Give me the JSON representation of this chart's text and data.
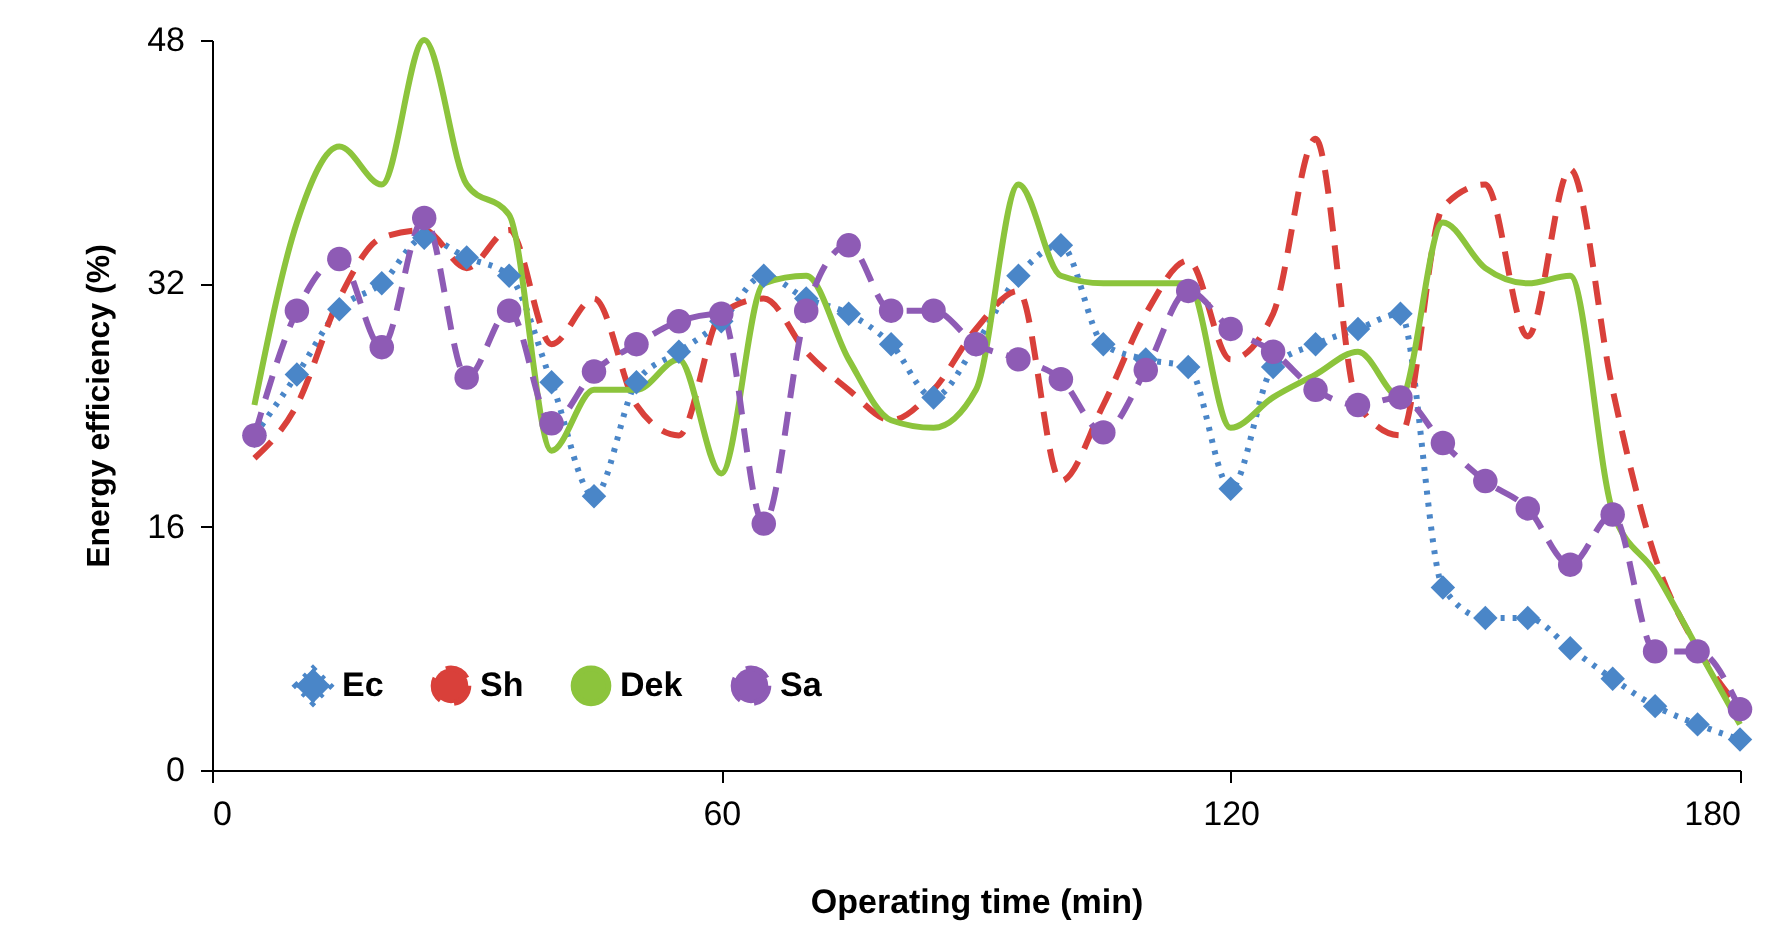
{
  "chart_data": {
    "type": "line",
    "xlabel": "Operating time (min)",
    "ylabel": "Energy efficiency (%)",
    "x": [
      5,
      10,
      15,
      20,
      25,
      30,
      35,
      40,
      45,
      50,
      55,
      60,
      65,
      70,
      75,
      80,
      85,
      90,
      95,
      100,
      105,
      110,
      115,
      120,
      125,
      130,
      135,
      140,
      145,
      150,
      155,
      160,
      165,
      170,
      175,
      180
    ],
    "series": [
      {
        "name": "Ec",
        "color": "#4a86c8",
        "marker": "diamond",
        "line_style": "dotted",
        "values": [
          22,
          26,
          30.3,
          32,
          35,
          33.7,
          32.5,
          25.5,
          18,
          25.5,
          27.5,
          29.5,
          32.5,
          31,
          30,
          28,
          24.5,
          28,
          32.5,
          34.5,
          28,
          27,
          26.5,
          18.5,
          26.5,
          28,
          29,
          30,
          12,
          10,
          10,
          8,
          6,
          4.2,
          3,
          2
        ]
      },
      {
        "name": "Sh",
        "color": "#d9403a",
        "marker": "none",
        "line_style": "dashed",
        "values": [
          20.5,
          24,
          31,
          35,
          35.5,
          33,
          35.5,
          28,
          31,
          24,
          22,
          30,
          31,
          27.5,
          25,
          23,
          25,
          29,
          31.5,
          19,
          24,
          30,
          33.5,
          27,
          30,
          41.5,
          24,
          22,
          37,
          38.5,
          28.5,
          39.5,
          25,
          14,
          8,
          4
        ]
      },
      {
        "name": "Dek",
        "color": "#8cc43c",
        "marker": "none",
        "line_style": "solid",
        "values": [
          24,
          36,
          41,
          38.5,
          48,
          38.5,
          36.5,
          21,
          25,
          25,
          27,
          19.5,
          32,
          32.5,
          27,
          23,
          22.5,
          25,
          38.5,
          32.5,
          32,
          32,
          32,
          22.5,
          24.5,
          26,
          27.5,
          24.5,
          36,
          33,
          32,
          32.5,
          17,
          13,
          8,
          3
        ]
      },
      {
        "name": "Sa",
        "color": "#8e5bb5",
        "marker": "circle",
        "line_style": "dashed",
        "values": [
          22,
          30.2,
          33.6,
          27.8,
          36.3,
          25.8,
          30.2,
          22.8,
          26.2,
          28,
          29.5,
          30,
          16.2,
          30.2,
          34.5,
          30.2,
          30.2,
          28,
          27,
          25.7,
          22.2,
          26.3,
          31.5,
          29,
          27.5,
          25,
          24,
          24.5,
          21.5,
          19,
          17.2,
          13.5,
          16.8,
          7.8,
          7.8,
          4
        ]
      }
    ],
    "xlim": [
      0,
      180
    ],
    "xticks": [
      0,
      60,
      120,
      180
    ],
    "ylim": [
      0,
      48
    ],
    "yticks": [
      0,
      16,
      32,
      48
    ],
    "grid": false,
    "legend": "bottom left"
  }
}
